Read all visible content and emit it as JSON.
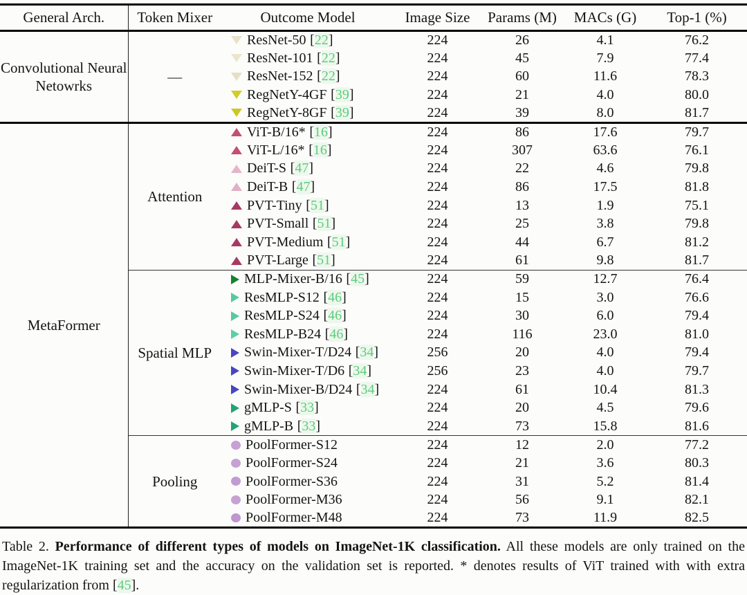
{
  "colors": {
    "citation_green": "#5ecb7c",
    "rule_black": "#000000",
    "text": "#141414"
  },
  "table": {
    "cite_open": "[",
    "cite_close": "]",
    "columns": [
      "General Arch.",
      "Token Mixer",
      "Outcome Model",
      "Image Size",
      "Params (M)",
      "MACs (G)",
      "Top-1 (%)"
    ],
    "groups": [
      {
        "arch": "Convolutional Neural Netowrks",
        "sections": [
          {
            "mixer": "—",
            "rows": [
              {
                "marker": {
                  "shape": "down",
                  "color": "#e8e2ca"
                },
                "model": "ResNet-50",
                "cite": "22",
                "image_size": "224",
                "params": "26",
                "macs": "4.1",
                "top1": "76.2"
              },
              {
                "marker": {
                  "shape": "down",
                  "color": "#eae5cf"
                },
                "model": "ResNet-101",
                "cite": "22",
                "image_size": "224",
                "params": "45",
                "macs": "7.9",
                "top1": "77.4"
              },
              {
                "marker": {
                  "shape": "down",
                  "color": "#e6dfc6"
                },
                "model": "ResNet-152",
                "cite": "22",
                "image_size": "224",
                "params": "60",
                "macs": "11.6",
                "top1": "78.3"
              },
              {
                "marker": {
                  "shape": "down",
                  "color": "#d2cc28"
                },
                "model": "RegNetY-4GF",
                "cite": "39",
                "image_size": "224",
                "params": "21",
                "macs": "4.0",
                "top1": "80.0"
              },
              {
                "marker": {
                  "shape": "down",
                  "color": "#cdc723"
                },
                "model": "RegNetY-8GF",
                "cite": "39",
                "image_size": "224",
                "params": "39",
                "macs": "8.0",
                "top1": "81.7"
              }
            ]
          }
        ]
      },
      {
        "arch": "MetaFormer",
        "sections": [
          {
            "mixer": "Attention",
            "rows": [
              {
                "marker": {
                  "shape": "up",
                  "color": "#c44e74"
                },
                "model": "ViT-B/16*",
                "cite": "16",
                "image_size": "224",
                "params": "86",
                "macs": "17.6",
                "top1": "79.7"
              },
              {
                "marker": {
                  "shape": "up",
                  "color": "#c44e74"
                },
                "model": "ViT-L/16*",
                "cite": "16",
                "image_size": "224",
                "params": "307",
                "macs": "63.6",
                "top1": "76.1"
              },
              {
                "marker": {
                  "shape": "up",
                  "color": "#e4b6ca"
                },
                "model": "DeiT-S",
                "cite": "47",
                "image_size": "224",
                "params": "22",
                "macs": "4.6",
                "top1": "79.8"
              },
              {
                "marker": {
                  "shape": "up",
                  "color": "#e1afc6"
                },
                "model": "DeiT-B",
                "cite": "47",
                "image_size": "224",
                "params": "86",
                "macs": "17.5",
                "top1": "81.8"
              },
              {
                "marker": {
                  "shape": "up",
                  "color": "#a63a63"
                },
                "model": "PVT-Tiny",
                "cite": "51",
                "image_size": "224",
                "params": "13",
                "macs": "1.9",
                "top1": "75.1"
              },
              {
                "marker": {
                  "shape": "up",
                  "color": "#a63a63"
                },
                "model": "PVT-Small",
                "cite": "51",
                "image_size": "224",
                "params": "25",
                "macs": "3.8",
                "top1": "79.8"
              },
              {
                "marker": {
                  "shape": "up",
                  "color": "#a63a63"
                },
                "model": "PVT-Medium",
                "cite": "51",
                "image_size": "224",
                "params": "44",
                "macs": "6.7",
                "top1": "81.2"
              },
              {
                "marker": {
                  "shape": "up",
                  "color": "#a63a63"
                },
                "model": "PVT-Large",
                "cite": "51",
                "image_size": "224",
                "params": "61",
                "macs": "9.8",
                "top1": "81.7"
              }
            ]
          },
          {
            "mixer": "Spatial MLP",
            "rows": [
              {
                "marker": {
                  "shape": "right",
                  "color": "#168231"
                },
                "model": "MLP-Mixer-B/16",
                "cite": "45",
                "image_size": "224",
                "params": "59",
                "macs": "12.7",
                "top1": "76.4"
              },
              {
                "marker": {
                  "shape": "right",
                  "color": "#56c9a4"
                },
                "model": "ResMLP-S12",
                "cite": "46",
                "image_size": "224",
                "params": "15",
                "macs": "3.0",
                "top1": "76.6"
              },
              {
                "marker": {
                  "shape": "right",
                  "color": "#56c9a4"
                },
                "model": "ResMLP-S24",
                "cite": "46",
                "image_size": "224",
                "params": "30",
                "macs": "6.0",
                "top1": "79.4"
              },
              {
                "marker": {
                  "shape": "right",
                  "color": "#5bceaa"
                },
                "model": "ResMLP-B24",
                "cite": "46",
                "image_size": "224",
                "params": "116",
                "macs": "23.0",
                "top1": "81.0"
              },
              {
                "marker": {
                  "shape": "right",
                  "color": "#4946c2"
                },
                "model": "Swin-Mixer-T/D24",
                "cite": "34",
                "image_size": "256",
                "params": "20",
                "macs": "4.0",
                "top1": "79.4"
              },
              {
                "marker": {
                  "shape": "right",
                  "color": "#4946c2"
                },
                "model": "Swin-Mixer-T/D6",
                "cite": "34",
                "image_size": "256",
                "params": "23",
                "macs": "4.0",
                "top1": "79.7"
              },
              {
                "marker": {
                  "shape": "right",
                  "color": "#4946c2"
                },
                "model": "Swin-Mixer-B/D24",
                "cite": "34",
                "image_size": "224",
                "params": "61",
                "macs": "10.4",
                "top1": "81.3"
              },
              {
                "marker": {
                  "shape": "right",
                  "color": "#23a27a"
                },
                "model": "gMLP-S",
                "cite": "33",
                "image_size": "224",
                "params": "20",
                "macs": "4.5",
                "top1": "79.6"
              },
              {
                "marker": {
                  "shape": "right",
                  "color": "#23a27a"
                },
                "model": "gMLP-B",
                "cite": "33",
                "image_size": "224",
                "params": "73",
                "macs": "15.8",
                "top1": "81.6"
              }
            ]
          },
          {
            "mixer": "Pooling",
            "rows": [
              {
                "marker": {
                  "shape": "circle",
                  "color": "#c7a1d3"
                },
                "model": "PoolFormer-S12",
                "cite": "",
                "image_size": "224",
                "params": "12",
                "macs": "2.0",
                "top1": "77.2"
              },
              {
                "marker": {
                  "shape": "circle",
                  "color": "#c7a1d3"
                },
                "model": "PoolFormer-S24",
                "cite": "",
                "image_size": "224",
                "params": "21",
                "macs": "3.6",
                "top1": "80.3"
              },
              {
                "marker": {
                  "shape": "circle",
                  "color": "#c39bd1"
                },
                "model": "PoolFormer-S36",
                "cite": "",
                "image_size": "224",
                "params": "31",
                "macs": "5.2",
                "top1": "81.4"
              },
              {
                "marker": {
                  "shape": "circle",
                  "color": "#c7a1d3"
                },
                "model": "PoolFormer-M36",
                "cite": "",
                "image_size": "224",
                "params": "56",
                "macs": "9.1",
                "top1": "82.1"
              },
              {
                "marker": {
                  "shape": "circle",
                  "color": "#bf96cd"
                },
                "model": "PoolFormer-M48",
                "cite": "",
                "image_size": "224",
                "params": "73",
                "macs": "11.9",
                "top1": "82.5"
              }
            ]
          }
        ]
      }
    ]
  },
  "caption": {
    "label": "Table 2. ",
    "bold": "Performance of different types of models on ImageNet-1K classification.",
    "text": " All these models are only trained on the ImageNet-1K training set and the accuracy on the validation set is reported. * denotes results of ViT trained with with extra regularization from ",
    "cite_open": "[",
    "cite": "45",
    "cite_close": "]."
  }
}
